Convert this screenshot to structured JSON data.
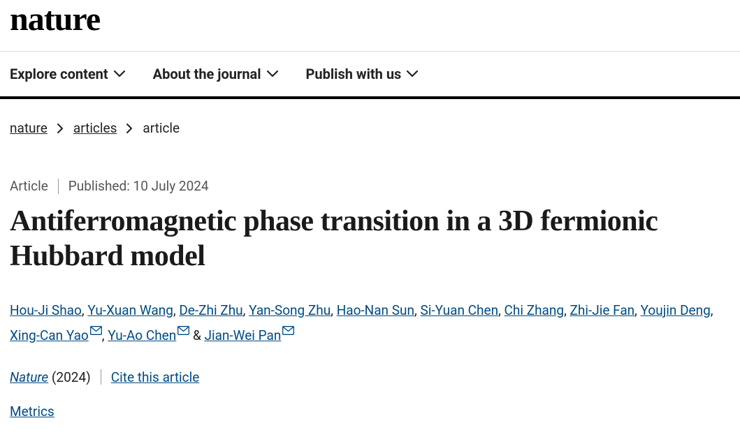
{
  "logo": "nature",
  "nav": {
    "items": [
      {
        "label": "Explore content"
      },
      {
        "label": "About the journal"
      },
      {
        "label": "Publish with us"
      }
    ]
  },
  "breadcrumbs": {
    "items": [
      {
        "label": "nature",
        "link": true
      },
      {
        "label": "articles",
        "link": true
      },
      {
        "label": "article",
        "link": false
      }
    ]
  },
  "meta": {
    "type": "Article",
    "published_label": "Published:",
    "published_date": "10 July 2024"
  },
  "title": "Antiferromagnetic phase transition in a 3D fermionic Hubbard model",
  "authors": [
    {
      "name": "Hou-Ji Shao",
      "corresponding": false
    },
    {
      "name": "Yu-Xuan Wang",
      "corresponding": false
    },
    {
      "name": "De-Zhi Zhu",
      "corresponding": false
    },
    {
      "name": "Yan-Song Zhu",
      "corresponding": false
    },
    {
      "name": "Hao-Nan Sun",
      "corresponding": false
    },
    {
      "name": "Si-Yuan Chen",
      "corresponding": false
    },
    {
      "name": "Chi Zhang",
      "corresponding": false
    },
    {
      "name": "Zhi-Jie Fan",
      "corresponding": false
    },
    {
      "name": "Youjin Deng",
      "corresponding": false
    },
    {
      "name": "Xing-Can Yao",
      "corresponding": true
    },
    {
      "name": "Yu-Ao Chen",
      "corresponding": true
    },
    {
      "name": "Jian-Wei Pan",
      "corresponding": true
    }
  ],
  "journal": {
    "name": "Nature",
    "year": "(2024)",
    "cite_label": "Cite this article"
  },
  "metrics_label": "Metrics",
  "colors": {
    "link": "#004b83",
    "text": "#222222",
    "meta": "#555555",
    "border_bottom": "#000000"
  }
}
